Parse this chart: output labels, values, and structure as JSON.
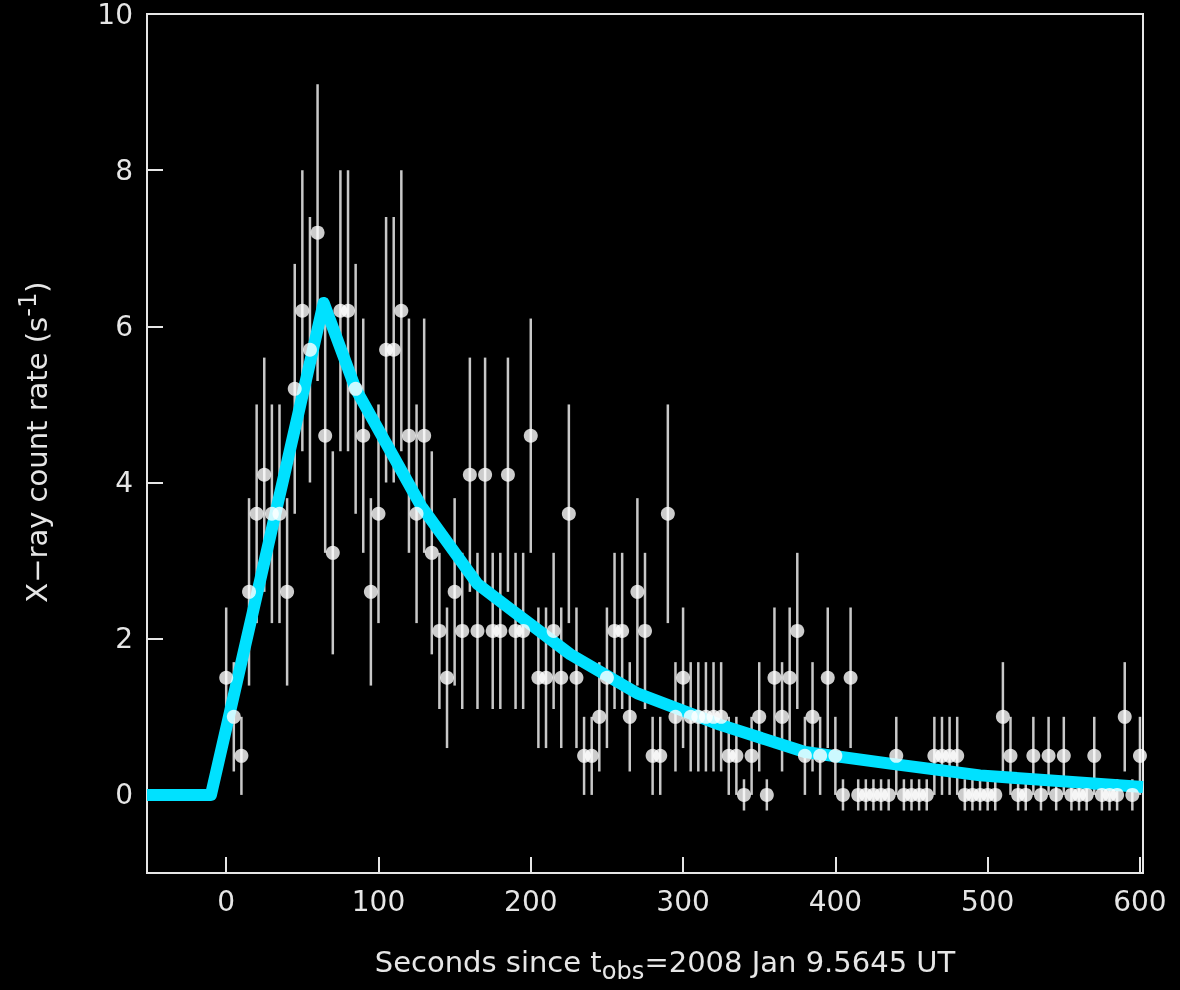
{
  "chart_data": {
    "type": "scatter",
    "xlabel": "Seconds since t$_{obs}$=2008 Jan 9.5645 UT",
    "ylabel": "X−ray count rate (s$^{-1}$)",
    "xlim": [
      -52,
      602
    ],
    "xticks": [
      0,
      100,
      200,
      300,
      400,
      500,
      600
    ],
    "ylim": [
      -1,
      10
    ],
    "yticks": [
      0,
      2,
      4,
      6,
      8,
      10
    ],
    "grid": false,
    "series": [
      {
        "color": "#ffffff",
        "marker": "circle",
        "x": [
          0,
          5,
          10,
          15,
          20,
          25,
          30,
          35,
          40,
          45,
          50,
          55,
          60,
          65,
          70,
          75,
          80,
          85,
          90,
          95,
          100,
          105,
          110,
          115,
          120,
          125,
          130,
          135,
          140,
          145,
          150,
          155,
          160,
          165,
          170,
          175,
          180,
          185,
          190,
          195,
          200,
          205,
          210,
          215,
          220,
          225,
          230,
          235,
          240,
          245,
          250,
          255,
          260,
          265,
          270,
          275,
          280,
          285,
          290,
          295,
          300,
          305,
          310,
          315,
          320,
          325,
          330,
          335,
          340,
          345,
          350,
          355,
          360,
          365,
          370,
          375,
          380,
          385,
          390,
          395,
          400,
          405,
          410,
          415,
          420,
          425,
          430,
          435,
          440,
          445,
          450,
          455,
          460,
          465,
          470,
          475,
          480,
          485,
          490,
          495,
          500,
          505,
          510,
          515,
          520,
          525,
          530,
          535,
          540,
          545,
          550,
          555,
          560,
          565,
          570,
          575,
          580,
          585,
          590,
          595,
          600
        ],
        "values": [
          1.5,
          1.0,
          0.5,
          2.6,
          3.6,
          4.1,
          3.6,
          3.6,
          2.6,
          5.2,
          6.2,
          5.7,
          7.2,
          4.6,
          3.1,
          6.2,
          6.2,
          5.2,
          4.6,
          2.6,
          3.6,
          5.7,
          5.7,
          6.2,
          4.6,
          3.6,
          4.6,
          3.1,
          2.1,
          1.5,
          2.6,
          2.1,
          4.1,
          2.1,
          4.1,
          2.1,
          2.1,
          4.1,
          2.1,
          2.1,
          4.6,
          1.5,
          1.5,
          2.1,
          1.5,
          3.6,
          1.5,
          0.5,
          0.5,
          1.0,
          1.5,
          2.1,
          2.1,
          1.0,
          2.6,
          2.1,
          0.5,
          0.5,
          3.6,
          1.0,
          1.5,
          1.0,
          1.0,
          1.0,
          1.0,
          1.0,
          0.5,
          0.5,
          0,
          0.5,
          1.0,
          0,
          1.5,
          1.0,
          1.5,
          2.1,
          0.5,
          1.0,
          0.5,
          1.5,
          0.5,
          0,
          1.5,
          0,
          0,
          0,
          0,
          0,
          0.5,
          0,
          0,
          0,
          0,
          0.5,
          0.5,
          0.5,
          0.5,
          0,
          0,
          0,
          0,
          0,
          1.0,
          0.5,
          0,
          0,
          0.5,
          0,
          0.5,
          0,
          0.5,
          0,
          0,
          0,
          0.5,
          0,
          0,
          0,
          1.0,
          0,
          0.5
        ],
        "errors": [
          0.9,
          0.7,
          0.5,
          1.2,
          1.4,
          1.5,
          1.4,
          1.4,
          1.2,
          1.6,
          1.8,
          1.7,
          1.9,
          1.5,
          1.3,
          1.8,
          1.8,
          1.6,
          1.5,
          1.2,
          1.4,
          1.7,
          1.7,
          1.8,
          1.5,
          1.4,
          1.5,
          1.3,
          1.0,
          0.9,
          1.2,
          1.0,
          1.5,
          1.0,
          1.5,
          1.0,
          1.0,
          1.5,
          1.0,
          1.0,
          1.5,
          0.9,
          0.9,
          1.0,
          0.9,
          1.4,
          0.9,
          0.5,
          0.5,
          0.7,
          0.9,
          1.0,
          1.0,
          0.7,
          1.2,
          1.0,
          0.5,
          0.5,
          1.4,
          0.7,
          0.9,
          0.7,
          0.7,
          0.7,
          0.7,
          0.7,
          0.5,
          0.5,
          0.2,
          0.5,
          0.7,
          0.2,
          0.9,
          0.7,
          0.9,
          1.0,
          0.5,
          0.7,
          0.5,
          0.9,
          0.5,
          0.2,
          0.9,
          0.2,
          0.2,
          0.2,
          0.2,
          0.2,
          0.5,
          0.2,
          0.2,
          0.2,
          0.2,
          0.5,
          0.5,
          0.5,
          0.5,
          0.2,
          0.2,
          0.2,
          0.2,
          0.2,
          0.7,
          0.5,
          0.2,
          0.2,
          0.5,
          0.2,
          0.5,
          0.2,
          0.5,
          0.2,
          0.2,
          0.2,
          0.5,
          0.2,
          0.2,
          0.2,
          0.7,
          0.2,
          0.5
        ]
      },
      {
        "type": "line",
        "color": "#00e1ff",
        "marker": "none",
        "line_style": "solid",
        "x": [
          -52,
          -10,
          64,
          85,
          128,
          165,
          226,
          270,
          324,
          380,
          436,
          495,
          602
        ],
        "values": [
          0,
          0,
          6.3,
          5.2,
          3.7,
          2.7,
          1.8,
          1.3,
          0.9,
          0.55,
          0.4,
          0.25,
          0.1
        ]
      }
    ]
  }
}
